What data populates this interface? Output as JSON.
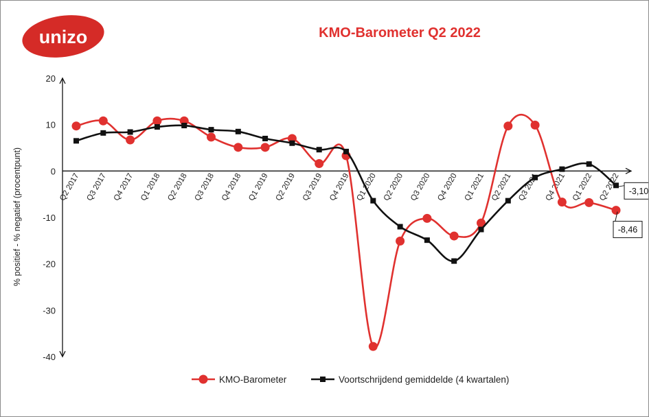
{
  "logo": {
    "text": "unizo",
    "color": "#d52b27"
  },
  "chart_data": {
    "type": "line",
    "title": "KMO-Barometer Q2 2022",
    "ylabel": "% positief - % negatief (procentpunt)",
    "xlabel": "",
    "ylim": [
      -40,
      20
    ],
    "yticks": [
      20,
      10,
      0,
      -10,
      -20,
      -30,
      -40
    ],
    "grid": false,
    "legend_position": "bottom",
    "categories": [
      "Q2 2017",
      "Q3 2017",
      "Q4 2017",
      "Q1 2018",
      "Q2 2018",
      "Q3 2018",
      "Q4 2018",
      "Q1 2019",
      "Q2 2019",
      "Q3 2019",
      "Q4 2019",
      "Q1 2020",
      "Q2 2020",
      "Q3 2020",
      "Q4 2020",
      "Q1 2021",
      "Q2 2021",
      "Q3 2021",
      "Q4 2021",
      "Q1 2022",
      "Q2 2022"
    ],
    "series": [
      {
        "name": "KMO-Barometer",
        "color": "#e0312f",
        "marker": "circle",
        "values": [
          9.7,
          10.8,
          6.7,
          10.8,
          10.8,
          7.3,
          5.1,
          5.1,
          7.0,
          1.6,
          3.3,
          -37.8,
          -15.1,
          -10.2,
          -14.0,
          -11.2,
          9.7,
          9.9,
          -6.7,
          -6.8,
          -8.46
        ]
      },
      {
        "name": "Voortschrijdend gemiddelde (4 kwartalen)",
        "color": "#111111",
        "marker": "square",
        "values": [
          6.5,
          8.2,
          8.4,
          9.5,
          9.8,
          8.9,
          8.5,
          7.0,
          6.0,
          4.6,
          4.2,
          -6.4,
          -12.0,
          -14.9,
          -19.4,
          -12.6,
          -6.4,
          -1.4,
          0.4,
          1.5,
          -3.1
        ]
      }
    ],
    "annotations": [
      {
        "series": 1,
        "index": 20,
        "text": "-3,10"
      },
      {
        "series": 0,
        "index": 20,
        "text": "-8,46"
      }
    ]
  }
}
